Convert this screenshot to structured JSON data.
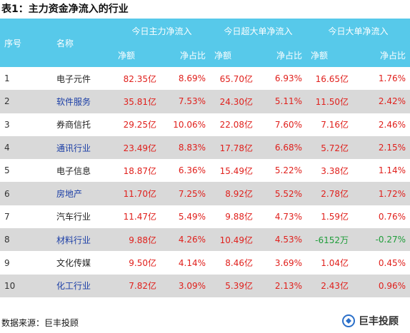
{
  "title": "表1：主力资金净流入的行业",
  "header": {
    "seq": "序号",
    "name": "名称",
    "groups": [
      "今日主力净流入",
      "今日超大单净流入",
      "今日大单净流入"
    ],
    "sub": [
      "净额",
      "净占比",
      "净额",
      "净占比",
      "净额",
      "净占比"
    ]
  },
  "rows": [
    {
      "seq": "1",
      "name": "电子元件",
      "v": [
        "82.35亿",
        "8.69%",
        "65.70亿",
        "6.93%",
        "16.65亿",
        "1.76%"
      ]
    },
    {
      "seq": "2",
      "name": "软件服务",
      "v": [
        "35.81亿",
        "7.53%",
        "24.30亿",
        "5.11%",
        "11.50亿",
        "2.42%"
      ]
    },
    {
      "seq": "3",
      "name": "券商信托",
      "v": [
        "29.25亿",
        "10.06%",
        "22.08亿",
        "7.60%",
        "7.16亿",
        "2.46%"
      ]
    },
    {
      "seq": "4",
      "name": "通讯行业",
      "v": [
        "23.49亿",
        "8.83%",
        "17.78亿",
        "6.68%",
        "5.72亿",
        "2.15%"
      ]
    },
    {
      "seq": "5",
      "name": "电子信息",
      "v": [
        "18.87亿",
        "6.36%",
        "15.49亿",
        "5.22%",
        "3.38亿",
        "1.14%"
      ]
    },
    {
      "seq": "6",
      "name": "房地产",
      "v": [
        "11.70亿",
        "7.25%",
        "8.92亿",
        "5.52%",
        "2.78亿",
        "1.72%"
      ]
    },
    {
      "seq": "7",
      "name": "汽车行业",
      "v": [
        "11.47亿",
        "5.49%",
        "9.88亿",
        "4.73%",
        "1.59亿",
        "0.76%"
      ]
    },
    {
      "seq": "8",
      "name": "材料行业",
      "v": [
        "9.88亿",
        "4.26%",
        "10.49亿",
        "4.53%",
        "-6152万",
        "-0.27%"
      ]
    },
    {
      "seq": "9",
      "name": "文化传媒",
      "v": [
        "9.50亿",
        "4.14%",
        "8.46亿",
        "3.69%",
        "1.04亿",
        "0.45%"
      ]
    },
    {
      "seq": "10",
      "name": "化工行业",
      "v": [
        "7.82亿",
        "3.09%",
        "5.39亿",
        "2.13%",
        "2.43亿",
        "0.96%"
      ]
    }
  ],
  "footer": "数据来源：巨丰投顾",
  "logo": {
    "text": "巨丰投顾",
    "icon": "jufeng-logo-icon",
    "color": "#2a6fc9"
  },
  "colors": {
    "header_bg": "#57c9ea",
    "positive": "#e0201c",
    "negative": "#1f9d3a",
    "stripe": "#d9d9d9"
  }
}
